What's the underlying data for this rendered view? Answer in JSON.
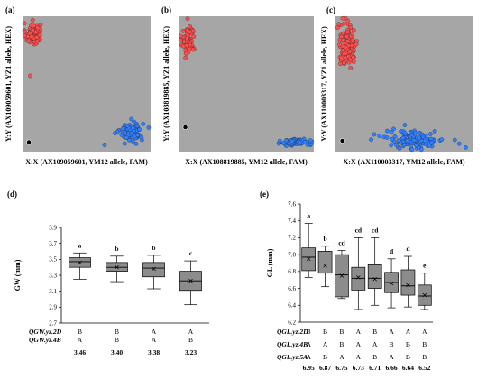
{
  "colors": {
    "panel_bg": "#a6a6a6",
    "allele_yz1": "#ff4d4d",
    "allele_ym12": "#2f7fff",
    "ntc": "#000000",
    "box_fill": "#8c8c8c"
  },
  "chart_data": [
    {
      "panel": "(a)",
      "type": "scatter",
      "xlabel": "X:X (AX109059601, YM12 allele, FAM)",
      "ylabel": "Y:Y (AX109059601, YZ1 allele, HEX)",
      "series": [
        {
          "name": "YZ1 allele",
          "cluster": {
            "x": 0.08,
            "y": 0.87,
            "sx": 0.03,
            "sy": 0.04,
            "n": 85
          }
        },
        {
          "name": "YM12 allele",
          "cluster": {
            "x": 0.85,
            "y": 0.15,
            "sx": 0.045,
            "sy": 0.035,
            "n": 90
          }
        }
      ],
      "outliers": [
        {
          "series": "YZ1 allele",
          "x": 0.06,
          "y": 0.56
        },
        {
          "series": "YM12 allele",
          "x": 0.64,
          "y": 0.05
        }
      ],
      "ntc": [
        {
          "x": 0.05,
          "y": 0.07
        }
      ]
    },
    {
      "panel": "(b)",
      "type": "scatter",
      "xlabel": "X:X (AX108819885, YM12 allele, FAM)",
      "ylabel": "Y:Y (AX108819885, YZ1 allele, HEX)",
      "series": [
        {
          "name": "YZ1 allele",
          "cluster": {
            "x": 0.07,
            "y": 0.82,
            "sx": 0.025,
            "sy": 0.06,
            "n": 70
          }
        },
        {
          "name": "YM12 allele",
          "cluster": {
            "x": 0.87,
            "y": 0.07,
            "sx": 0.05,
            "sy": 0.012,
            "n": 90
          }
        }
      ],
      "outliers": [],
      "ntc": [
        {
          "x": 0.05,
          "y": 0.18
        }
      ]
    },
    {
      "panel": "(c)",
      "type": "scatter",
      "xlabel": "X:X (AX110003317, YM12 allele, FAM)",
      "ylabel": "Y:Y (AX110003317, YZ1 allele, HEX)",
      "series": [
        {
          "name": "YZ1 allele",
          "cluster": {
            "x": 0.09,
            "y": 0.79,
            "sx": 0.035,
            "sy": 0.08,
            "n": 110
          }
        },
        {
          "name": "YM12 allele",
          "cluster": {
            "x": 0.58,
            "y": 0.09,
            "sx": 0.11,
            "sy": 0.035,
            "n": 130
          }
        }
      ],
      "outliers": [
        {
          "series": "YM12 allele",
          "x": 0.95,
          "y": 0.03
        }
      ],
      "ntc": [
        {
          "x": 0.05,
          "y": 0.08
        }
      ]
    },
    {
      "panel": "(d)",
      "type": "box",
      "ylabel": "GW (mm)",
      "ylim": [
        2.7,
        3.9
      ],
      "yticks": [
        2.7,
        2.9,
        3.1,
        3.3,
        3.5,
        3.7,
        3.9
      ],
      "groups": [
        {
          "lo": 3.25,
          "q1": 3.4,
          "median": 3.47,
          "q3": 3.52,
          "hi": 3.58,
          "mean": 3.46,
          "sig": "a"
        },
        {
          "lo": 3.22,
          "q1": 3.35,
          "median": 3.4,
          "q3": 3.46,
          "hi": 3.54,
          "mean": 3.4,
          "sig": "b"
        },
        {
          "lo": 3.13,
          "q1": 3.28,
          "median": 3.39,
          "q3": 3.46,
          "hi": 3.55,
          "mean": 3.38,
          "sig": "b"
        },
        {
          "lo": 2.93,
          "q1": 3.11,
          "median": 3.23,
          "q3": 3.35,
          "hi": 3.48,
          "mean": 3.23,
          "sig": "c"
        }
      ],
      "genotype_rows": [
        {
          "label": "QGW.yz.2D",
          "values": [
            "B",
            "B",
            "A",
            "A"
          ]
        },
        {
          "label": "QGW.yz.4B",
          "values": [
            "A",
            "B",
            "A",
            "B"
          ]
        }
      ],
      "means": [
        "3.46",
        "3.40",
        "3.38",
        "3.23"
      ]
    },
    {
      "panel": "(e)",
      "type": "box",
      "ylabel": "GL (mm)",
      "ylim": [
        6.2,
        7.6
      ],
      "yticks": [
        6.2,
        6.4,
        6.6,
        6.8,
        7.0,
        7.2,
        7.4,
        7.6
      ],
      "groups": [
        {
          "lo": 6.73,
          "q1": 6.81,
          "median": 6.97,
          "q3": 7.08,
          "hi": 7.37,
          "mean": 6.95,
          "sig": "a"
        },
        {
          "lo": 6.62,
          "q1": 6.78,
          "median": 6.89,
          "q3": 7.04,
          "hi": 7.1,
          "mean": 6.87,
          "sig": "b"
        },
        {
          "lo": 6.48,
          "q1": 6.5,
          "median": 6.76,
          "q3": 7.0,
          "hi": 7.05,
          "mean": 6.75,
          "sig": "cd"
        },
        {
          "lo": 6.35,
          "q1": 6.58,
          "median": 6.72,
          "q3": 6.85,
          "hi": 7.2,
          "mean": 6.73,
          "sig": "cd"
        },
        {
          "lo": 6.4,
          "q1": 6.6,
          "median": 6.72,
          "q3": 6.88,
          "hi": 7.2,
          "mean": 6.71,
          "sig": "cd"
        },
        {
          "lo": 6.37,
          "q1": 6.55,
          "median": 6.67,
          "q3": 6.79,
          "hi": 6.95,
          "mean": 6.66,
          "sig": "d"
        },
        {
          "lo": 6.38,
          "q1": 6.52,
          "median": 6.63,
          "q3": 6.82,
          "hi": 6.98,
          "mean": 6.64,
          "sig": "d"
        },
        {
          "lo": 6.35,
          "q1": 6.4,
          "median": 6.51,
          "q3": 6.64,
          "hi": 6.78,
          "mean": 6.52,
          "sig": "e"
        }
      ],
      "genotype_rows": [
        {
          "label": "QGL.yz.2D",
          "values": [
            "B",
            "B",
            "B",
            "A",
            "B",
            "A",
            "A",
            "A"
          ]
        },
        {
          "label": "QGL.yz.4B",
          "values": [
            "A",
            "A",
            "B",
            "A",
            "A",
            "B",
            "B",
            "B"
          ]
        },
        {
          "label": "QGL.yz.5A",
          "values": [
            "A",
            "B",
            "A",
            "A",
            "B",
            "A",
            "B",
            "B"
          ]
        }
      ],
      "means": [
        "6.95",
        "6.87",
        "6.75",
        "6.73",
        "6.71",
        "6.66",
        "6.64",
        "6.52"
      ]
    }
  ]
}
